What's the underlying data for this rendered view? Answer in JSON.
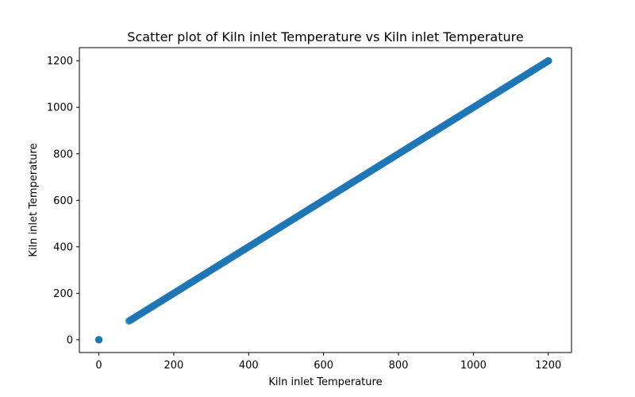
{
  "chart_data": {
    "type": "scatter",
    "title": "Scatter plot of Kiln inlet Temperature vs Kiln inlet Temperature",
    "xlabel": "Kiln inlet Temperature",
    "ylabel": "Kiln inlet Temperature",
    "xlim": [
      -52,
      1262
    ],
    "ylim": [
      -55,
      1257
    ],
    "xticks": [
      0,
      200,
      400,
      600,
      800,
      1000,
      1200
    ],
    "yticks": [
      0,
      200,
      400,
      600,
      800,
      1000,
      1200
    ],
    "grid": false,
    "legend": "none",
    "color": "#1f77b4",
    "series": [
      {
        "name": "",
        "points": [
          [
            0,
            0
          ],
          [
            1200,
            1200
          ],
          {
            "from": 80,
            "to": 1200,
            "relation": "y = x"
          }
        ]
      }
    ]
  }
}
